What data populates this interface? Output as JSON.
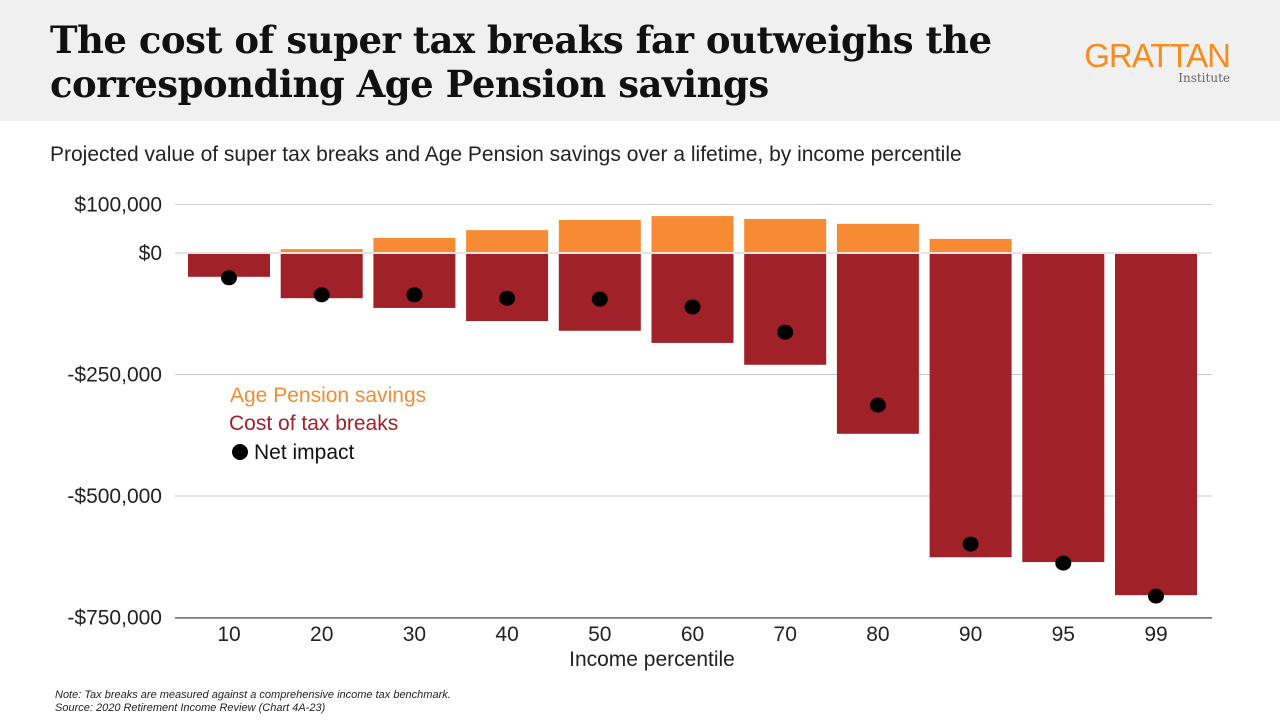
{
  "header": {
    "title": "The cost of super tax breaks far outweighs the corresponding Age Pension savings",
    "logo": "GRATTAN Institute"
  },
  "subtitle": "Projected value of super tax breaks and Age Pension savings over a lifetime, by income percentile",
  "notes": {
    "note": "Note: Tax breaks are measured against a comprehensive income tax benchmark.",
    "source": "Source: 2020 Retirement Income Review (Chart 4A-23)"
  },
  "chart_data": {
    "type": "bar",
    "xlabel": "Income percentile",
    "ylabel": "",
    "categories": [
      "10",
      "20",
      "30",
      "40",
      "50",
      "60",
      "70",
      "80",
      "90",
      "95",
      "99"
    ],
    "ylim": [
      -750000,
      100000
    ],
    "yticks": [
      100000,
      0,
      -250000,
      -500000,
      -750000
    ],
    "ytick_labels": [
      "$100,000",
      "$0",
      "-$250,000",
      "-$500,000",
      "-$750,000"
    ],
    "grid": true,
    "legend_position": "left-middle",
    "series": [
      {
        "name": "Age Pension savings",
        "kind": "bar",
        "color": "#f68b33",
        "values": [
          0,
          8000,
          31000,
          47000,
          68000,
          76000,
          70000,
          60000,
          29000,
          0,
          0
        ]
      },
      {
        "name": "Cost of tax breaks",
        "kind": "bar",
        "color": "#a02128",
        "values": [
          -49000,
          -93000,
          -113000,
          -140000,
          -160000,
          -185000,
          -230000,
          -372000,
          -626000,
          -636000,
          -704000
        ]
      },
      {
        "name": "Net impact",
        "kind": "dot",
        "color": "#000000",
        "values": [
          -51000,
          -86000,
          -86000,
          -93000,
          -95000,
          -111000,
          -163000,
          -313000,
          -599000,
          -638000,
          -706000
        ]
      }
    ]
  }
}
